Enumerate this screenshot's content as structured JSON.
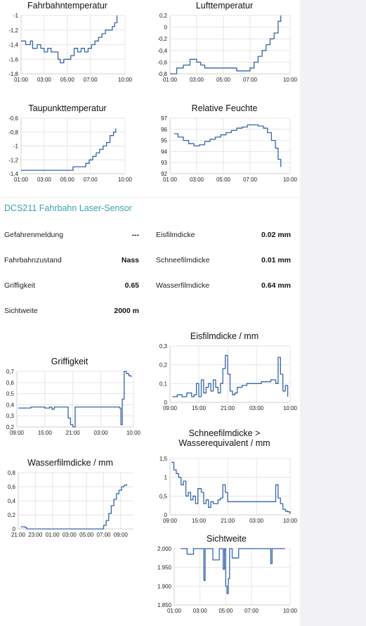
{
  "section_title": "DCS211 Fahrbahn Laser-Sensor",
  "readings": [
    {
      "label": "Gefahrenmeldung",
      "value": "---"
    },
    {
      "label": "Fahrbahnzustand",
      "value": "Nass"
    },
    {
      "label": "Griffigkeit",
      "value": "0.65"
    },
    {
      "label": "Sichtweite",
      "value": "2000 m"
    },
    {
      "label": "Eisfilmdicke",
      "value": "0.02 mm"
    },
    {
      "label": "Schneefilmdicke",
      "value": "0.01 mm"
    },
    {
      "label": "Wasserfilmdicke",
      "value": "0.64 mm"
    }
  ],
  "chart_data": [
    {
      "type": "line",
      "title": "Fahrbahntemperatur",
      "ylim": [
        -1.8,
        -1.0
      ],
      "yticks": [
        "-1",
        "-1,2",
        "-1,4",
        "-1,6",
        "-1,8"
      ],
      "ytick_values": [
        -1,
        -1.2,
        -1.4,
        -1.6,
        -1.8
      ],
      "xlim": [
        1,
        10
      ],
      "xticks": [
        "01:00",
        "03:00",
        "05:00",
        "07:00",
        "10:00"
      ],
      "xtick_values": [
        1,
        3,
        5,
        7,
        10
      ],
      "grid": true,
      "series": [
        {
          "x": [
            1.0,
            1.4,
            1.8,
            2.0,
            2.4,
            2.7,
            3.0,
            3.3,
            3.6,
            3.9,
            4.2,
            4.4,
            4.7,
            5.0,
            5.3,
            5.6,
            5.9,
            6.2,
            6.5,
            6.8,
            7.1,
            7.4,
            7.7,
            8.0,
            8.3,
            8.6,
            8.9,
            9.1,
            9.3
          ],
          "y": [
            -1.35,
            -1.4,
            -1.35,
            -1.45,
            -1.4,
            -1.45,
            -1.5,
            -1.45,
            -1.5,
            -1.5,
            -1.6,
            -1.65,
            -1.6,
            -1.6,
            -1.55,
            -1.45,
            -1.5,
            -1.45,
            -1.5,
            -1.45,
            -1.4,
            -1.35,
            -1.3,
            -1.25,
            -1.2,
            -1.2,
            -1.15,
            -1.1,
            -1.0
          ]
        }
      ]
    },
    {
      "type": "line",
      "title": "Lufttemperatur",
      "ylim": [
        -0.8,
        0.2
      ],
      "yticks": [
        "0,2",
        "0",
        "-0,2",
        "-0,4",
        "-0,6",
        "-0,8"
      ],
      "ytick_values": [
        0.2,
        0,
        -0.2,
        -0.4,
        -0.6,
        -0.8
      ],
      "xlim": [
        1,
        10
      ],
      "xticks": [
        "01:00",
        "03:00",
        "05:00",
        "07:00",
        "10:00"
      ],
      "xtick_values": [
        1,
        3,
        5,
        7,
        10
      ],
      "grid": true,
      "series": [
        {
          "x": [
            1.0,
            1.5,
            2.0,
            2.5,
            3.0,
            3.3,
            3.6,
            4.0,
            4.5,
            5.0,
            5.5,
            6.0,
            6.5,
            7.0,
            7.3,
            7.6,
            7.9,
            8.2,
            8.5,
            8.8,
            9.1,
            9.3
          ],
          "y": [
            -0.8,
            -0.7,
            -0.65,
            -0.55,
            -0.6,
            -0.65,
            -0.7,
            -0.7,
            -0.7,
            -0.7,
            -0.7,
            -0.75,
            -0.75,
            -0.7,
            -0.6,
            -0.5,
            -0.4,
            -0.3,
            -0.2,
            -0.1,
            0.1,
            0.2
          ]
        }
      ]
    },
    {
      "type": "line",
      "title": "Taupunkttemperatur",
      "ylim": [
        -1.4,
        -0.6
      ],
      "yticks": [
        "-0,6",
        "-0,8",
        "-1",
        "-1,2",
        "-1,4"
      ],
      "ytick_values": [
        -0.6,
        -0.8,
        -1,
        -1.2,
        -1.4
      ],
      "xlim": [
        1,
        10
      ],
      "xticks": [
        "01:00",
        "03:00",
        "05:00",
        "07:00",
        "10:00"
      ],
      "xtick_values": [
        1,
        3,
        5,
        7,
        10
      ],
      "grid": true,
      "series": [
        {
          "x": [
            1.0,
            1.5,
            2.0,
            2.5,
            3.0,
            3.5,
            4.0,
            4.5,
            5.0,
            5.5,
            6.0,
            6.3,
            6.6,
            6.9,
            7.2,
            7.5,
            7.8,
            8.1,
            8.4,
            8.7,
            9.0,
            9.2
          ],
          "y": [
            -1.35,
            -1.35,
            -1.35,
            -1.35,
            -1.35,
            -1.35,
            -1.35,
            -1.35,
            -1.35,
            -1.3,
            -1.3,
            -1.3,
            -1.25,
            -1.2,
            -1.15,
            -1.1,
            -1.05,
            -1.0,
            -0.95,
            -0.85,
            -0.8,
            -0.75
          ]
        }
      ]
    },
    {
      "type": "line",
      "title": "Relative Feuchte",
      "ylim": [
        92,
        97
      ],
      "yticks": [
        "97",
        "96",
        "95",
        "94",
        "93",
        "92"
      ],
      "ytick_values": [
        97,
        96,
        95,
        94,
        93,
        92
      ],
      "xlim": [
        1,
        10
      ],
      "xticks": [
        "01:00",
        "03:00",
        "05:00",
        "07:00",
        "10:00"
      ],
      "xtick_values": [
        1,
        3,
        5,
        7,
        10
      ],
      "grid": true,
      "series": [
        {
          "x": [
            1.3,
            1.6,
            2.0,
            2.4,
            2.8,
            3.2,
            3.6,
            4.0,
            4.4,
            4.8,
            5.2,
            5.6,
            6.0,
            6.4,
            6.8,
            7.2,
            7.6,
            8.0,
            8.3,
            8.6,
            8.9,
            9.1,
            9.3
          ],
          "y": [
            95.6,
            95.3,
            95.0,
            94.7,
            94.5,
            94.6,
            94.9,
            95.1,
            95.3,
            95.5,
            95.7,
            95.9,
            96.1,
            96.2,
            96.4,
            96.4,
            96.3,
            96.1,
            95.7,
            95.0,
            94.3,
            93.3,
            92.6
          ]
        }
      ]
    },
    {
      "type": "line",
      "title": "Eisfilmdicke / mm",
      "ylim": [
        0,
        0.3
      ],
      "yticks": [
        "0,3",
        "0,2",
        "0,1",
        "0"
      ],
      "ytick_values": [
        0.3,
        0.2,
        0.1,
        0
      ],
      "xlim": [
        9,
        34
      ],
      "xticks": [
        "09:00",
        "15:00",
        "21:00",
        "03:00",
        "10:00"
      ],
      "xtick_values": [
        9,
        15,
        21,
        27,
        34
      ],
      "grid": true,
      "series": [
        {
          "x": [
            9.5,
            10.5,
            11.5,
            12.5,
            13.5,
            14.0,
            14.5,
            15.0,
            15.5,
            16.0,
            16.5,
            17.0,
            17.5,
            18.0,
            18.5,
            19.0,
            19.5,
            20.0,
            20.5,
            21.0,
            21.5,
            22.0,
            22.5,
            23.0,
            24.0,
            25.0,
            26.0,
            27.0,
            28.0,
            29.0,
            30.0,
            31.0,
            31.5,
            32.0,
            32.5,
            33.0,
            33.5
          ],
          "y": [
            0.03,
            0.04,
            0.03,
            0.05,
            0.03,
            0.04,
            0.1,
            0.03,
            0.12,
            0.05,
            0.08,
            0.1,
            0.06,
            0.12,
            0.08,
            0.05,
            0.1,
            0.18,
            0.25,
            0.15,
            0.06,
            0.04,
            0.05,
            0.08,
            0.09,
            0.1,
            0.1,
            0.1,
            0.11,
            0.11,
            0.12,
            0.1,
            0.24,
            0.15,
            0.06,
            0.09,
            0.03
          ]
        }
      ]
    },
    {
      "type": "line",
      "title": "Griffigkeit",
      "ylim": [
        0.2,
        0.7
      ],
      "yticks": [
        "0,7",
        "0,6",
        "0,5",
        "0,4",
        "0,3",
        "0,2"
      ],
      "ytick_values": [
        0.7,
        0.6,
        0.5,
        0.4,
        0.3,
        0.2
      ],
      "xlim": [
        9,
        34
      ],
      "xticks": [
        "09:00",
        "15:00",
        "21:00",
        "03:00",
        "10:00"
      ],
      "xtick_values": [
        9,
        15,
        21,
        27,
        34
      ],
      "grid": true,
      "series": [
        {
          "x": [
            9.3,
            10.5,
            12.0,
            13.5,
            15.0,
            16.0,
            16.5,
            17.0,
            18.0,
            19.5,
            20.0,
            20.5,
            21.0,
            21.5,
            22.0,
            23.0,
            25.0,
            27.0,
            29.0,
            30.0,
            31.0,
            31.3,
            31.6,
            32.0,
            32.5,
            33.0,
            33.5
          ],
          "y": [
            0.37,
            0.37,
            0.38,
            0.38,
            0.37,
            0.38,
            0.36,
            0.38,
            0.38,
            0.38,
            0.28,
            0.22,
            0.2,
            0.38,
            0.38,
            0.38,
            0.38,
            0.38,
            0.38,
            0.38,
            0.37,
            0.22,
            0.45,
            0.7,
            0.68,
            0.66,
            0.65
          ]
        }
      ]
    },
    {
      "type": "line",
      "title": "Schneefilmdicke > Wasserequivalent / mm",
      "ylim": [
        0,
        1.5
      ],
      "yticks": [
        "1,5",
        "1",
        "0,5",
        "0"
      ],
      "ytick_values": [
        1.5,
        1,
        0.5,
        0
      ],
      "xlim": [
        9,
        34
      ],
      "xticks": [
        "09:00",
        "15:00",
        "21:00",
        "03:00",
        "10:00"
      ],
      "xtick_values": [
        9,
        15,
        21,
        27,
        34
      ],
      "grid": true,
      "series": [
        {
          "x": [
            9.3,
            9.8,
            10.3,
            10.8,
            11.3,
            11.8,
            12.3,
            12.8,
            13.3,
            13.8,
            14.3,
            14.8,
            15.5,
            16.0,
            16.5,
            17.0,
            17.5,
            18.0,
            18.5,
            19.0,
            19.5,
            20.0,
            20.5,
            21.0,
            22.0,
            24.0,
            26.0,
            28.0,
            30.0,
            31.0,
            31.5,
            32.0,
            32.5,
            33.0,
            33.5,
            34.0
          ],
          "y": [
            1.4,
            1.2,
            1.1,
            1.0,
            0.8,
            0.9,
            0.5,
            0.6,
            0.4,
            0.5,
            0.3,
            0.7,
            0.6,
            0.3,
            0.4,
            0.2,
            0.35,
            0.3,
            0.3,
            0.4,
            0.45,
            0.8,
            0.6,
            0.35,
            0.35,
            0.35,
            0.35,
            0.35,
            0.35,
            0.8,
            0.45,
            0.3,
            0.15,
            0.1,
            0.08,
            0.02
          ]
        }
      ]
    },
    {
      "type": "line",
      "title": "Wasserfilmdicke / mm",
      "ylim": [
        0,
        0.8
      ],
      "yticks": [
        "0,8",
        "0,6",
        "0,4",
        "0,2",
        "0"
      ],
      "ytick_values": [
        0.8,
        0.6,
        0.4,
        0.2,
        0
      ],
      "xlim": [
        21,
        34.5
      ],
      "xticks": [
        "21:00",
        "23:00",
        "01:00",
        "03:00",
        "05:00",
        "07:00",
        "09:00"
      ],
      "xtick_values": [
        21,
        23,
        25,
        27,
        29,
        31,
        33
      ],
      "grid": true,
      "series": [
        {
          "x": [
            21.3,
            21.8,
            22.0,
            23.0,
            25.0,
            27.0,
            29.0,
            30.5,
            31.0,
            31.3,
            31.6,
            31.9,
            32.2,
            32.5,
            32.8,
            33.1,
            33.4,
            33.7
          ],
          "y": [
            0.03,
            0.02,
            0.0,
            0.0,
            0.0,
            0.0,
            0.0,
            0.0,
            0.05,
            0.12,
            0.22,
            0.33,
            0.42,
            0.5,
            0.55,
            0.6,
            0.62,
            0.64
          ]
        }
      ]
    },
    {
      "type": "line",
      "title": "Sichtweite",
      "ylim": [
        1850,
        2000
      ],
      "yticks": [
        "2.000",
        "1.950",
        "1.900",
        "1.850"
      ],
      "ytick_values": [
        2000,
        1950,
        1900,
        1850
      ],
      "xlim": [
        1,
        10
      ],
      "xticks": [
        "01:00",
        "03:00",
        "05:00",
        "07:00",
        "10:00"
      ],
      "xtick_values": [
        1,
        3,
        5,
        7,
        10
      ],
      "grid": true,
      "series": [
        {
          "x": [
            1.5,
            1.8,
            2.0,
            2.5,
            3.0,
            3.2,
            3.3,
            3.4,
            3.6,
            4.0,
            4.5,
            4.7,
            4.8,
            4.9,
            5.0,
            5.1,
            5.2,
            5.3,
            5.5,
            6.0,
            7.0,
            8.0,
            8.4,
            8.5,
            8.6,
            9.0,
            9.6
          ],
          "y": [
            2000,
            2000,
            1985,
            2000,
            2000,
            2000,
            1915,
            2000,
            2000,
            1970,
            2000,
            2000,
            1945,
            2000,
            1900,
            1880,
            1920,
            2000,
            1975,
            2000,
            2000,
            2000,
            2000,
            1960,
            2000,
            2000,
            2000
          ]
        }
      ]
    }
  ]
}
